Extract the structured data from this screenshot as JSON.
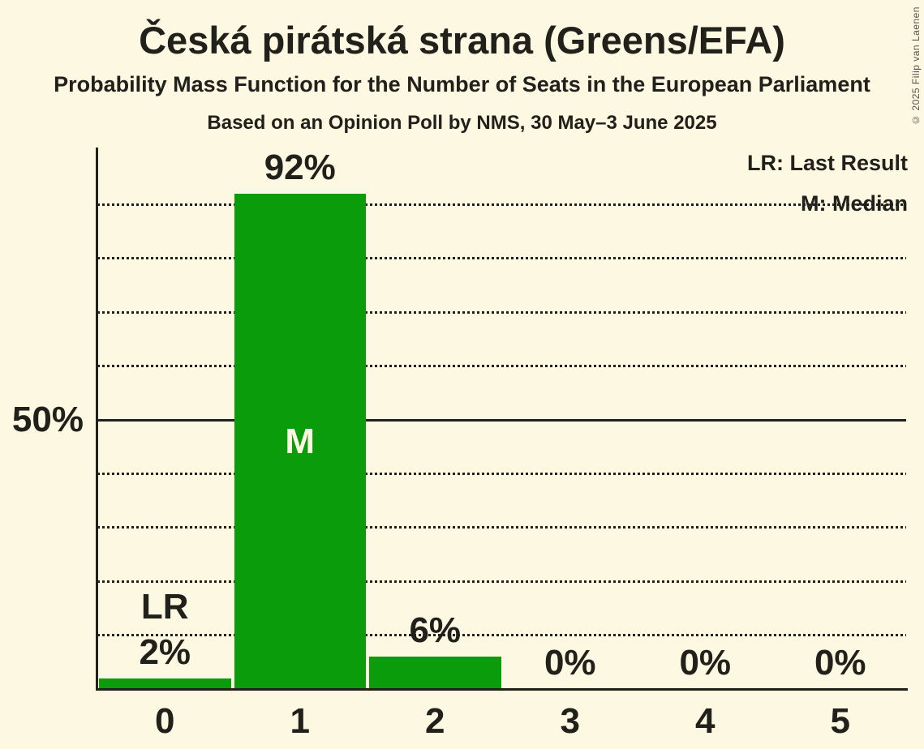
{
  "header": {
    "title": "Česká pirátská strana (Greens/EFA)",
    "subtitle": "Probability Mass Function for the Number of Seats in the European Parliament",
    "source_line": "Based on an Opinion Poll by NMS, 30 May–3 June 2025"
  },
  "copyright": "© 2025 Filip van Laenen",
  "legend": {
    "lr": "LR: Last Result",
    "m": "M: Median"
  },
  "chart_data": {
    "type": "bar",
    "title": "Česká pirátská strana (Greens/EFA)",
    "categories": [
      "0",
      "1",
      "2",
      "3",
      "4",
      "5"
    ],
    "values": [
      2,
      92,
      6,
      0,
      0,
      0
    ],
    "bar_labels": [
      "2%",
      "92%",
      "6%",
      "0%",
      "0%",
      "0%"
    ],
    "ylim": [
      0,
      100
    ],
    "y_tick_interval": 10,
    "solid_gridline_at": 50,
    "y_axis_label": {
      "value": 50,
      "text": "50%"
    },
    "annotations": {
      "last_result_seat": 0,
      "last_result_label": "LR",
      "median_seat": 1,
      "median_label": "M"
    },
    "grid": "dotted horizontal",
    "legend_position": "top-right",
    "bar_color": "#0b9c0b",
    "background_color": "#fcf8e2",
    "text_color": "#21201a"
  }
}
